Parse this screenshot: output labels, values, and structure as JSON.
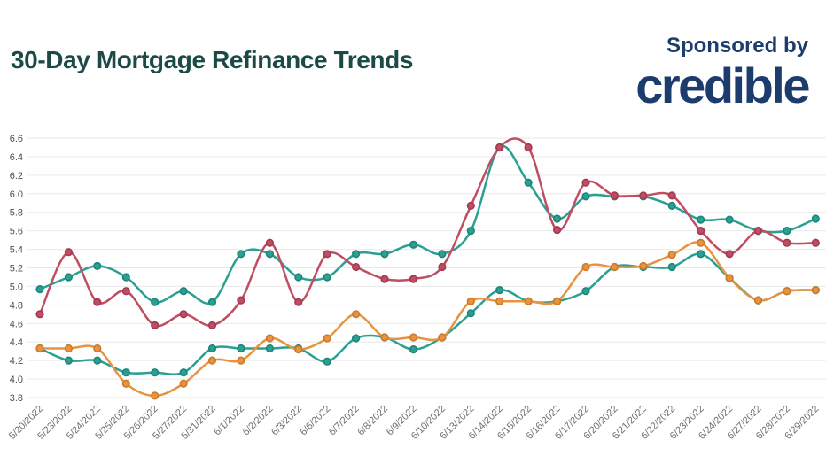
{
  "header": {
    "title": "30-Day Mortgage Refinance Trends",
    "sponsored_by": "Sponsored by",
    "sponsor_logo": "credible"
  },
  "colors": {
    "title": "#1b4a47",
    "sponsor_navy": "#1d3c6e",
    "background": "#ffffff",
    "gridline": "#e9e9e9",
    "y_axis_label": "#4d4d4d",
    "x_axis_label": "#6f6f6f",
    "teal": "#2aa092",
    "red": "#c04e63",
    "orange": "#e8933f"
  },
  "chart_data": {
    "type": "line",
    "title": "30-Day Mortgage Refinance Trends",
    "xlabel": "",
    "ylabel": "",
    "ylim": [
      3.8,
      6.6
    ],
    "ytick_step": 0.2,
    "grid": true,
    "legend": "none",
    "y_tick_labels": [
      "6.6",
      "6.4",
      "6.2",
      "6.0",
      "5.8",
      "5.6",
      "5.4",
      "5.2",
      "5.0",
      "4.8",
      "4.6",
      "4.4",
      "4.2",
      "4.0",
      "3.8"
    ],
    "x": [
      "5/20/2022",
      "5/23/2022",
      "5/24/2022",
      "5/25/2022",
      "5/26/2022",
      "5/27/2022",
      "5/31/2022",
      "6/1/2022",
      "6/2/2022",
      "6/3/2022",
      "6/6/2022",
      "6/7/2022",
      "6/8/2022",
      "6/9/2022",
      "6/10/2022",
      "6/13/2022",
      "6/14/2022",
      "6/15/2022",
      "6/16/2022",
      "6/17/2022",
      "6/20/2022",
      "6/21/2022",
      "6/22/2022",
      "6/23/2022",
      "6/24/2022",
      "6/27/2022",
      "6/28/2022",
      "6/29/2022"
    ],
    "series": [
      {
        "name": "teal-upper",
        "color": "#2aa092",
        "dot_stroke": "#1e8578",
        "values": [
          4.97,
          5.1,
          5.22,
          5.1,
          4.83,
          4.95,
          4.83,
          5.35,
          5.35,
          5.1,
          5.1,
          5.35,
          5.35,
          5.45,
          5.35,
          5.6,
          6.5,
          6.12,
          5.73,
          5.97,
          5.97,
          5.97,
          5.87,
          5.72,
          5.72,
          5.6,
          5.6,
          5.73
        ]
      },
      {
        "name": "teal-lower",
        "color": "#2aa092",
        "dot_stroke": "#1e8578",
        "values": [
          4.33,
          4.2,
          4.2,
          4.07,
          4.07,
          4.07,
          4.33,
          4.33,
          4.33,
          4.33,
          4.19,
          4.44,
          4.45,
          4.32,
          4.45,
          4.71,
          4.96,
          4.84,
          4.84,
          4.95,
          5.21,
          5.21,
          5.21,
          5.35,
          5.09,
          4.85,
          4.95,
          4.96
        ]
      },
      {
        "name": "orange",
        "color": "#e8933f",
        "dot_stroke": "#cc7a2c",
        "values": [
          4.33,
          4.33,
          4.33,
          3.95,
          3.82,
          3.95,
          4.2,
          4.2,
          4.44,
          4.32,
          4.44,
          4.7,
          4.45,
          4.45,
          4.45,
          4.84,
          4.84,
          4.84,
          4.84,
          5.21,
          5.21,
          5.22,
          5.34,
          5.47,
          5.09,
          4.85,
          4.95,
          4.96
        ]
      },
      {
        "name": "red",
        "color": "#c04e63",
        "dot_stroke": "#a13a52",
        "values": [
          4.7,
          5.37,
          4.83,
          4.95,
          4.58,
          4.7,
          4.58,
          4.85,
          5.47,
          4.83,
          5.35,
          5.21,
          5.08,
          5.08,
          5.21,
          5.87,
          6.5,
          6.5,
          5.61,
          6.12,
          5.98,
          5.98,
          5.98,
          5.6,
          5.35,
          5.6,
          5.47,
          5.47
        ]
      }
    ]
  }
}
